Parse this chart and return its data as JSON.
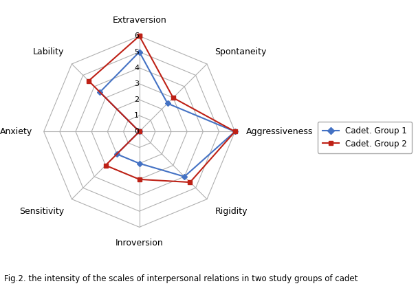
{
  "categories": [
    "Extraversion",
    "Spontaneity",
    "Aggressiveness",
    "Rigidity",
    "Inroversion",
    "Sensitivity",
    "Anxiety",
    "Lability"
  ],
  "group1": [
    5,
    2.5,
    6,
    4,
    2,
    2,
    0,
    3.5
  ],
  "group2": [
    6,
    3,
    6,
    4.5,
    3,
    3,
    0,
    4.5
  ],
  "group1_color": "#4472C4",
  "group2_color": "#BE2116",
  "group1_label": "Cadet. Group 1",
  "group2_label": "Cadet. Group 2",
  "rmax": 6,
  "rtick_values": [
    0,
    1,
    2,
    3,
    4,
    5,
    6
  ],
  "title": "Fig.2. the intensity of the scales of interpersonal relations in two study groups of cadet",
  "background_color": "#ffffff",
  "grid_color": "#b0b0b0",
  "spoke_color": "#b0b0b0",
  "label_fontsize": 9,
  "tick_fontsize": 8,
  "caption_fontsize": 8.5
}
